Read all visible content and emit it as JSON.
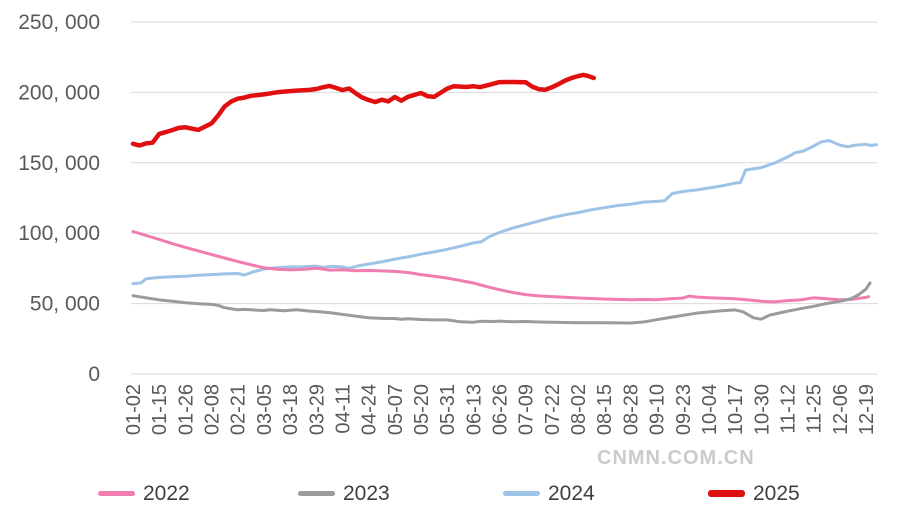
{
  "watermark": "CNMN.COM.CN",
  "colors": {
    "background": "#FFFFFF",
    "grid": "#D9D9D9",
    "axis_text": "#595959",
    "legend_text": "#3F3F3F",
    "watermark_text": "#CBCBCB"
  },
  "chart_data": {
    "type": "line",
    "title": "",
    "xlabel": "",
    "ylabel": "",
    "grid": "horizontal",
    "legend_position": "bottom",
    "ylim": [
      0,
      250000
    ],
    "y_tick_values": [
      0,
      50000,
      100000,
      150000,
      200000,
      250000
    ],
    "y_tick_labels": [
      "0",
      "50, 000",
      "100, 000",
      "150, 000",
      "200, 000",
      "250, 000"
    ],
    "categories": [
      "01-02",
      "01-15",
      "01-26",
      "02-08",
      "02-21",
      "03-05",
      "03-18",
      "03-29",
      "04-11",
      "04-24",
      "05-07",
      "05-20",
      "05-31",
      "06-13",
      "06-26",
      "07-09",
      "07-22",
      "08-02",
      "08-15",
      "08-28",
      "09-10",
      "09-23",
      "10-04",
      "10-17",
      "10-30",
      "11-12",
      "11-25",
      "12-06",
      "12-19"
    ],
    "points_format": "[category_index, value]",
    "series": [
      {
        "name": "2022",
        "color": "#F17CB0",
        "line_width": 3,
        "points": [
          [
            0,
            101200
          ],
          [
            0.5,
            98400
          ],
          [
            1,
            95600
          ],
          [
            1.5,
            92600
          ],
          [
            2,
            89900
          ],
          [
            2.5,
            87400
          ],
          [
            3,
            84900
          ],
          [
            3.5,
            82400
          ],
          [
            4,
            79900
          ],
          [
            4.5,
            77600
          ],
          [
            5,
            75400
          ],
          [
            5.5,
            74400
          ],
          [
            6,
            73900
          ],
          [
            6.5,
            74300
          ],
          [
            7,
            75100
          ],
          [
            7.25,
            74600
          ],
          [
            7.5,
            73800
          ],
          [
            8,
            74100
          ],
          [
            8.5,
            73400
          ],
          [
            9,
            73500
          ],
          [
            9.5,
            73200
          ],
          [
            10,
            72900
          ],
          [
            10.5,
            72100
          ],
          [
            11,
            70600
          ],
          [
            11.5,
            69400
          ],
          [
            12,
            68100
          ],
          [
            12.5,
            66400
          ],
          [
            13,
            64600
          ],
          [
            13.5,
            62100
          ],
          [
            14,
            59900
          ],
          [
            14.5,
            57900
          ],
          [
            15,
            56400
          ],
          [
            15.5,
            55500
          ],
          [
            16,
            55000
          ],
          [
            16.5,
            54500
          ],
          [
            17,
            54000
          ],
          [
            17.5,
            53600
          ],
          [
            18,
            53300
          ],
          [
            18.5,
            53000
          ],
          [
            19,
            52800
          ],
          [
            19.5,
            52900
          ],
          [
            20,
            52800
          ],
          [
            20.5,
            53400
          ],
          [
            21,
            53900
          ],
          [
            21.25,
            55300
          ],
          [
            21.5,
            54700
          ],
          [
            22,
            54100
          ],
          [
            22.5,
            53800
          ],
          [
            23,
            53400
          ],
          [
            23.5,
            52600
          ],
          [
            24,
            51600
          ],
          [
            24.5,
            51200
          ],
          [
            25,
            52100
          ],
          [
            25.5,
            52600
          ],
          [
            26,
            54100
          ],
          [
            26.5,
            53400
          ],
          [
            27,
            52600
          ],
          [
            27.5,
            53100
          ],
          [
            28,
            54400
          ],
          [
            28.1,
            54900
          ]
        ]
      },
      {
        "name": "2023",
        "color": "#9B9B9B",
        "line_width": 3,
        "points": [
          [
            0,
            55600
          ],
          [
            0.5,
            54100
          ],
          [
            1,
            52600
          ],
          [
            1.5,
            51600
          ],
          [
            2,
            50600
          ],
          [
            2.5,
            49900
          ],
          [
            3,
            49400
          ],
          [
            3.25,
            48700
          ],
          [
            3.5,
            47100
          ],
          [
            4,
            45600
          ],
          [
            4.25,
            45900
          ],
          [
            4.75,
            45300
          ],
          [
            5,
            45100
          ],
          [
            5.25,
            45700
          ],
          [
            5.75,
            44900
          ],
          [
            6,
            45300
          ],
          [
            6.25,
            45700
          ],
          [
            6.75,
            44700
          ],
          [
            7,
            44400
          ],
          [
            7.5,
            43600
          ],
          [
            8,
            42300
          ],
          [
            8.5,
            41100
          ],
          [
            9,
            40000
          ],
          [
            9.5,
            39500
          ],
          [
            10,
            39400
          ],
          [
            10.25,
            38900
          ],
          [
            10.5,
            39200
          ],
          [
            11,
            38700
          ],
          [
            11.5,
            38400
          ],
          [
            12,
            38400
          ],
          [
            12.5,
            37100
          ],
          [
            13,
            36700
          ],
          [
            13.25,
            37400
          ],
          [
            13.75,
            37300
          ],
          [
            14,
            37600
          ],
          [
            14.5,
            37100
          ],
          [
            15,
            37300
          ],
          [
            15.5,
            36900
          ],
          [
            16,
            36700
          ],
          [
            16.5,
            36600
          ],
          [
            17,
            36400
          ],
          [
            17.5,
            36400
          ],
          [
            18,
            36400
          ],
          [
            18.5,
            36300
          ],
          [
            19,
            36200
          ],
          [
            19.5,
            36900
          ],
          [
            20,
            38600
          ],
          [
            20.5,
            40100
          ],
          [
            21,
            41600
          ],
          [
            21.5,
            43100
          ],
          [
            22,
            44100
          ],
          [
            22.5,
            44900
          ],
          [
            23,
            45500
          ],
          [
            23.3,
            44200
          ],
          [
            23.7,
            39900
          ],
          [
            24,
            38900
          ],
          [
            24.3,
            41700
          ],
          [
            24.6,
            43000
          ],
          [
            25,
            44600
          ],
          [
            25.5,
            46400
          ],
          [
            26,
            48100
          ],
          [
            26.5,
            50100
          ],
          [
            27,
            51600
          ],
          [
            27.4,
            53300
          ],
          [
            27.7,
            56100
          ],
          [
            28,
            60300
          ],
          [
            28.15,
            64600
          ]
        ]
      },
      {
        "name": "2024",
        "color": "#9DC3E6",
        "line_width": 3,
        "points": [
          [
            0,
            64200
          ],
          [
            0.3,
            64600
          ],
          [
            0.5,
            67600
          ],
          [
            1,
            68600
          ],
          [
            1.5,
            69100
          ],
          [
            2,
            69400
          ],
          [
            2.5,
            70100
          ],
          [
            3,
            70600
          ],
          [
            3.5,
            71100
          ],
          [
            4,
            71400
          ],
          [
            4.25,
            70300
          ],
          [
            4.6,
            72600
          ],
          [
            5,
            74600
          ],
          [
            5.5,
            75600
          ],
          [
            6,
            76100
          ],
          [
            6.5,
            76200
          ],
          [
            7,
            76600
          ],
          [
            7.25,
            75700
          ],
          [
            7.6,
            76400
          ],
          [
            8,
            76100
          ],
          [
            8.25,
            75100
          ],
          [
            8.6,
            76800
          ],
          [
            9,
            78100
          ],
          [
            9.5,
            79600
          ],
          [
            10,
            81600
          ],
          [
            10.5,
            83200
          ],
          [
            11,
            85100
          ],
          [
            11.5,
            86700
          ],
          [
            12,
            88600
          ],
          [
            12.5,
            90700
          ],
          [
            13,
            93100
          ],
          [
            13.3,
            93900
          ],
          [
            13.6,
            97400
          ],
          [
            14,
            100600
          ],
          [
            14.5,
            103600
          ],
          [
            15,
            106100
          ],
          [
            15.5,
            108600
          ],
          [
            16,
            111100
          ],
          [
            16.5,
            113100
          ],
          [
            17,
            114600
          ],
          [
            17.5,
            116600
          ],
          [
            18,
            118100
          ],
          [
            18.5,
            119600
          ],
          [
            19,
            120600
          ],
          [
            19.5,
            122100
          ],
          [
            20,
            122600
          ],
          [
            20.3,
            123000
          ],
          [
            20.6,
            128200
          ],
          [
            21,
            129600
          ],
          [
            21.5,
            130700
          ],
          [
            22,
            132100
          ],
          [
            22.5,
            133600
          ],
          [
            23,
            135600
          ],
          [
            23.2,
            136000
          ],
          [
            23.4,
            144900
          ],
          [
            24,
            146600
          ],
          [
            24.5,
            149800
          ],
          [
            25,
            154100
          ],
          [
            25.3,
            157200
          ],
          [
            25.6,
            158300
          ],
          [
            26,
            161900
          ],
          [
            26.3,
            164900
          ],
          [
            26.6,
            165800
          ],
          [
            27,
            162600
          ],
          [
            27.3,
            161400
          ],
          [
            27.6,
            162600
          ],
          [
            28,
            163100
          ],
          [
            28.2,
            162300
          ],
          [
            28.4,
            162900
          ]
        ]
      },
      {
        "name": "2025",
        "color": "#E01010",
        "line_width": 4.5,
        "points": [
          [
            0,
            163500
          ],
          [
            0.25,
            162300
          ],
          [
            0.5,
            163800
          ],
          [
            0.75,
            164300
          ],
          [
            1,
            170500
          ],
          [
            1.25,
            171800
          ],
          [
            1.5,
            173200
          ],
          [
            1.75,
            174800
          ],
          [
            2,
            175200
          ],
          [
            2.5,
            173400
          ],
          [
            3,
            178000
          ],
          [
            3.25,
            183500
          ],
          [
            3.5,
            190000
          ],
          [
            3.75,
            193500
          ],
          [
            4,
            195500
          ],
          [
            4.25,
            196300
          ],
          [
            4.5,
            197600
          ],
          [
            5,
            198600
          ],
          [
            5.5,
            200100
          ],
          [
            6,
            200900
          ],
          [
            6.25,
            201300
          ],
          [
            6.75,
            201800
          ],
          [
            7,
            202400
          ],
          [
            7.25,
            203600
          ],
          [
            7.5,
            204600
          ],
          [
            7.75,
            203200
          ],
          [
            8,
            201600
          ],
          [
            8.25,
            202800
          ],
          [
            8.5,
            199500
          ],
          [
            8.75,
            196400
          ],
          [
            9,
            194600
          ],
          [
            9.25,
            193200
          ],
          [
            9.5,
            194800
          ],
          [
            9.75,
            193600
          ],
          [
            10,
            196700
          ],
          [
            10.25,
            194100
          ],
          [
            10.5,
            196900
          ],
          [
            11,
            199600
          ],
          [
            11.25,
            197300
          ],
          [
            11.5,
            196800
          ],
          [
            12,
            202700
          ],
          [
            12.25,
            204300
          ],
          [
            12.75,
            203800
          ],
          [
            13,
            204400
          ],
          [
            13.25,
            203700
          ],
          [
            13.75,
            206100
          ],
          [
            14,
            207300
          ],
          [
            14.5,
            207400
          ],
          [
            15,
            207200
          ],
          [
            15.25,
            204100
          ],
          [
            15.5,
            202300
          ],
          [
            15.75,
            201900
          ],
          [
            16,
            203600
          ],
          [
            16.25,
            205800
          ],
          [
            16.5,
            208400
          ],
          [
            16.75,
            210200
          ],
          [
            17,
            211600
          ],
          [
            17.2,
            212400
          ],
          [
            17.4,
            211600
          ],
          [
            17.6,
            210200
          ]
        ]
      }
    ]
  }
}
